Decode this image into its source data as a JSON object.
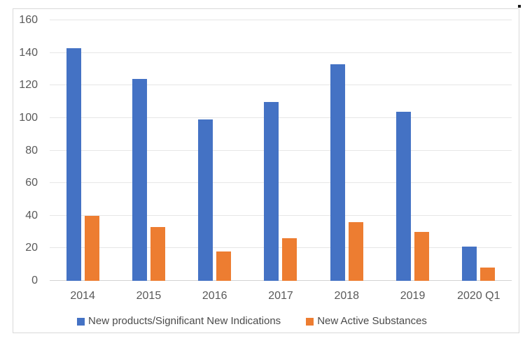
{
  "chart_data": {
    "type": "bar",
    "title": "",
    "xlabel": "",
    "ylabel": "",
    "categories": [
      "2014",
      "2015",
      "2016",
      "2017",
      "2018",
      "2019",
      "2020 Q1"
    ],
    "series": [
      {
        "name": "New products/Significant New Indications",
        "slug": "new-products",
        "color": "#4472C4",
        "values": [
          143,
          124,
          99,
          110,
          133,
          104,
          21
        ]
      },
      {
        "name": "New Active Substances",
        "slug": "new-active-substances",
        "color": "#ED7D31",
        "values": [
          40,
          33,
          18,
          26,
          36,
          30,
          8
        ]
      }
    ],
    "ylim": [
      0,
      160
    ],
    "ytick_step": 20,
    "yticks": [
      0,
      20,
      40,
      60,
      80,
      100,
      120,
      140,
      160
    ],
    "grid": true,
    "legend_position": "bottom"
  },
  "colors": {
    "gridline": "#E6E6E6",
    "axis_line": "#D2D2D2",
    "frame_border": "#D9D9D9",
    "tick_label": "#595959",
    "legend_label": "#4a4a4a"
  }
}
